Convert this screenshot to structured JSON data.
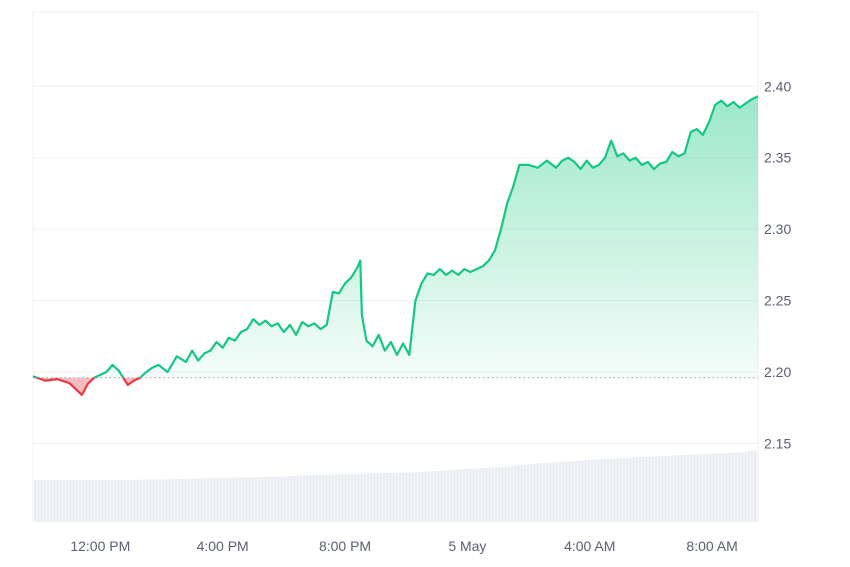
{
  "chart_data": {
    "type": "area",
    "title": "",
    "xlabel": "",
    "ylabel": "",
    "baseline": 2.196,
    "ylim": [
      2.095,
      2.452
    ],
    "grid": true,
    "legend": "none",
    "colors": {
      "up": "#16c784",
      "down": "#ea3943",
      "grid": "#eef0f3",
      "baseline": "#9aa0aa",
      "volume": "#e9ecf0"
    },
    "y_ticks": [
      2.15,
      2.2,
      2.25,
      2.3,
      2.35,
      2.4
    ],
    "y_tick_labels": [
      "2.15",
      "2.20",
      "2.25",
      "2.30",
      "2.35",
      "2.40"
    ],
    "x_tick_labels": [
      "12:00 PM",
      "4:00 PM",
      "8:00 PM",
      "5 May",
      "4:00 AM",
      "8:00 AM"
    ],
    "x_tick_hours": [
      0,
      4,
      8,
      12,
      16,
      20
    ],
    "x_range_hours": [
      -2.2,
      21.5
    ],
    "series": [
      {
        "x_hours": [
          -2.2,
          -1.8,
          -1.4,
          -1.0,
          -0.6,
          -0.4,
          -0.2,
          0.0,
          0.2,
          0.4,
          0.6,
          0.9,
          1.1,
          1.3,
          1.5,
          1.7,
          1.9,
          2.2,
          2.5,
          2.8,
          3.0,
          3.2,
          3.4,
          3.6,
          3.8,
          4.0,
          4.2,
          4.4,
          4.6,
          4.8,
          5.0,
          5.2,
          5.4,
          5.6,
          5.8,
          6.0,
          6.2,
          6.4,
          6.6,
          6.8,
          7.0,
          7.2,
          7.4,
          7.6,
          7.8,
          8.0,
          8.2,
          8.4,
          8.5,
          8.55,
          8.7,
          8.9,
          9.1,
          9.3,
          9.5,
          9.7,
          9.9,
          10.1,
          10.3,
          10.5,
          10.7,
          10.9,
          11.1,
          11.3,
          11.5,
          11.7,
          11.9,
          12.1,
          12.3,
          12.5,
          12.7,
          12.9,
          13.1,
          13.3,
          13.5,
          13.7,
          14.0,
          14.3,
          14.6,
          14.9,
          15.1,
          15.3,
          15.5,
          15.7,
          15.9,
          16.1,
          16.3,
          16.5,
          16.7,
          16.9,
          17.1,
          17.3,
          17.5,
          17.7,
          17.9,
          18.1,
          18.3,
          18.5,
          18.7,
          18.9,
          19.1,
          19.3,
          19.5,
          19.7,
          19.9,
          20.1,
          20.3,
          20.5,
          20.7,
          20.9,
          21.1,
          21.3,
          21.5
        ],
        "values": [
          2.197,
          2.194,
          2.195,
          2.192,
          2.184,
          2.192,
          2.196,
          2.198,
          2.2,
          2.205,
          2.201,
          2.191,
          2.194,
          2.196,
          2.2,
          2.203,
          2.205,
          2.2,
          2.211,
          2.207,
          2.215,
          2.208,
          2.213,
          2.215,
          2.221,
          2.217,
          2.224,
          2.222,
          2.228,
          2.23,
          2.237,
          2.233,
          2.236,
          2.232,
          2.234,
          2.228,
          2.233,
          2.226,
          2.235,
          2.232,
          2.234,
          2.23,
          2.233,
          2.256,
          2.255,
          2.262,
          2.266,
          2.273,
          2.278,
          2.24,
          2.222,
          2.218,
          2.226,
          2.215,
          2.221,
          2.212,
          2.22,
          2.212,
          2.25,
          2.262,
          2.269,
          2.268,
          2.272,
          2.268,
          2.271,
          2.268,
          2.272,
          2.27,
          2.272,
          2.274,
          2.278,
          2.285,
          2.3,
          2.318,
          2.33,
          2.345,
          2.345,
          2.343,
          2.348,
          2.343,
          2.348,
          2.35,
          2.347,
          2.342,
          2.348,
          2.343,
          2.345,
          2.35,
          2.362,
          2.351,
          2.353,
          2.348,
          2.35,
          2.345,
          2.347,
          2.342,
          2.346,
          2.347,
          2.354,
          2.351,
          2.353,
          2.368,
          2.37,
          2.366,
          2.375,
          2.387,
          2.39,
          2.386,
          2.389,
          2.385,
          2.388,
          2.391,
          2.393
        ]
      }
    ],
    "volume_relative": [
      0.55,
      0.55,
      0.56,
      0.57,
      0.58,
      0.59,
      0.6,
      0.62,
      0.63,
      0.64,
      0.65,
      0.67,
      0.7,
      0.72,
      0.76,
      0.79,
      0.82,
      0.84,
      0.86,
      0.88,
      0.9,
      0.92,
      0.95
    ],
    "volume_x_hours": [
      -2.2,
      0.0,
      2.0,
      3.0,
      4.0,
      5.0,
      6.0,
      7.0,
      8.0,
      9.0,
      10.0,
      11.0,
      12.0,
      13.0,
      14.0,
      15.0,
      16.0,
      17.0,
      18.0,
      19.0,
      20.0,
      21.0,
      21.5
    ]
  }
}
